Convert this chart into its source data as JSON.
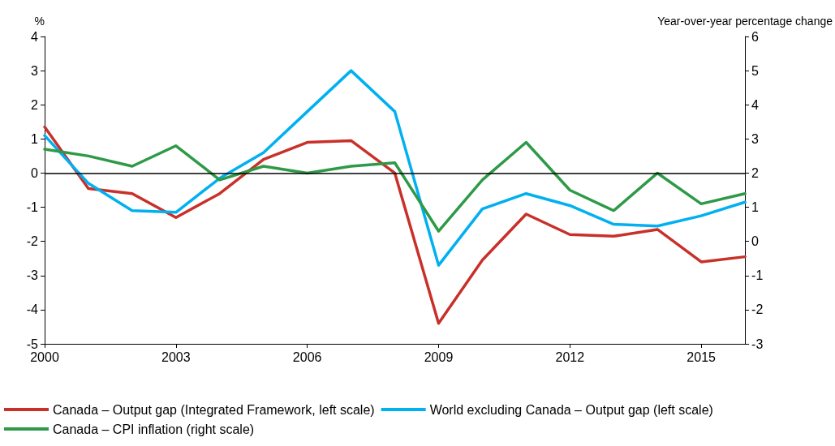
{
  "chart_data": {
    "type": "line",
    "ylabel": "%",
    "y2label": "Year-over-year percentage change",
    "x": [
      2000,
      2001,
      2002,
      2003,
      2004,
      2005,
      2006,
      2007,
      2008,
      2009,
      2010,
      2011,
      2012,
      2013,
      2014,
      2015,
      2016
    ],
    "xlim": [
      2000,
      2016
    ],
    "xticks": [
      2000,
      2003,
      2006,
      2009,
      2012,
      2015
    ],
    "ylim": [
      -5,
      4
    ],
    "yticks": [
      -5,
      -4,
      -3,
      -2,
      -1,
      0,
      1,
      2,
      3,
      4
    ],
    "y2lim": [
      -3,
      6
    ],
    "y2ticks": [
      -3,
      -2,
      -1,
      0,
      1,
      2,
      3,
      4,
      5,
      6
    ],
    "series": [
      {
        "name": "Canada – Output gap (Integrated Framework, left scale)",
        "color": "#c8312a",
        "values": [
          1.35,
          -0.45,
          -0.6,
          -1.3,
          -0.6,
          0.4,
          0.9,
          0.95,
          0.0,
          -4.4,
          -2.55,
          -1.2,
          -1.8,
          -1.85,
          -1.65,
          -2.6,
          -2.45
        ]
      },
      {
        "name": "World excluding Canada – Output gap (left scale)",
        "color": "#00b0f0",
        "values": [
          1.1,
          -0.3,
          -1.1,
          -1.15,
          -0.15,
          0.6,
          1.8,
          3.0,
          1.8,
          -2.7,
          -1.05,
          -0.6,
          -0.95,
          -1.5,
          -1.55,
          -1.25,
          -0.85
        ]
      },
      {
        "name": "Canada – CPI inflation (right scale)",
        "color": "#2e9a47",
        "axis": "y2",
        "values": [
          2.7,
          2.5,
          2.2,
          2.8,
          1.8,
          2.2,
          2.0,
          2.2,
          2.3,
          0.3,
          1.8,
          2.9,
          1.5,
          0.9,
          2.0,
          1.1,
          1.4
        ]
      }
    ],
    "ref_lines": [
      {
        "axis": "y",
        "value": 0,
        "color": "#000000"
      }
    ],
    "grid": false,
    "legend": "bottom",
    "marker": "none",
    "line_style": "solid"
  }
}
